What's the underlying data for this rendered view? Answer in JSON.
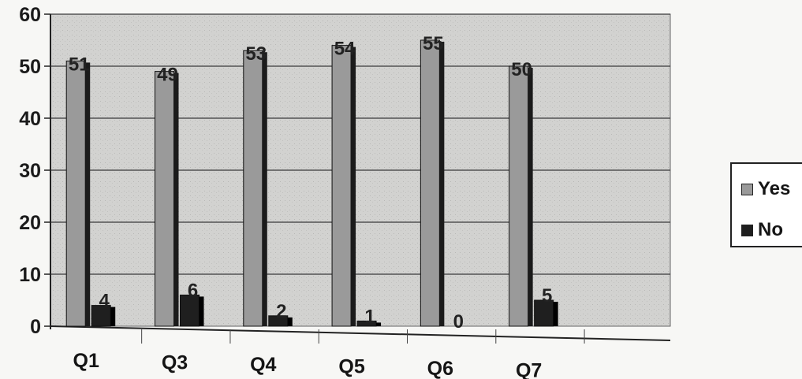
{
  "chart_data": {
    "type": "bar",
    "title": "",
    "xlabel": "",
    "ylabel": "",
    "categories": [
      "Q1",
      "Q3",
      "Q4",
      "Q5",
      "Q6",
      "Q7"
    ],
    "series": [
      {
        "name": "Yes",
        "values": [
          51,
          49,
          53,
          54,
          55,
          50
        ],
        "color": "#9a9a9a"
      },
      {
        "name": "No",
        "values": [
          4,
          6,
          2,
          1,
          0,
          5
        ],
        "color": "#1f1f1f"
      }
    ],
    "ylim": [
      0,
      60
    ],
    "yticks": [
      0,
      10,
      20,
      30,
      40,
      50,
      60
    ],
    "grid": true,
    "legend_position": "right",
    "data_labels": true
  }
}
